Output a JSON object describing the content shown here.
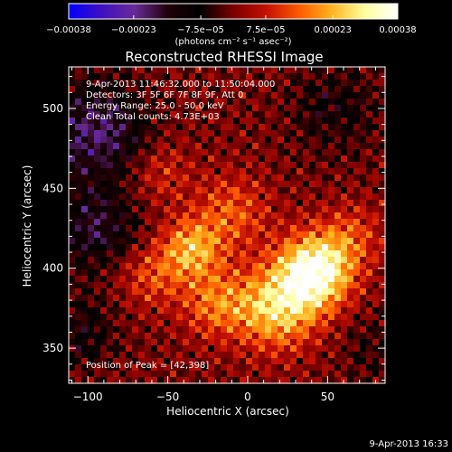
{
  "chart_data": {
    "type": "heatmap",
    "title": "Reconstructed RHESSI Image",
    "xlabel": "Heliocentric X (arcsec)",
    "ylabel": "Heliocentric Y (arcsec)",
    "xlim": [
      -112,
      86
    ],
    "ylim": [
      328,
      526
    ],
    "xticks": [
      -100,
      -50,
      0,
      50
    ],
    "yticks": [
      350,
      400,
      450,
      500
    ],
    "xtick_labels": [
      "−100",
      "−50",
      "0",
      "50"
    ],
    "ytick_labels": [
      "350",
      "400",
      "450",
      "500"
    ],
    "grid": false,
    "colorbar": {
      "label": "(photons cm⁻² s⁻¹ asec⁻²)",
      "range": [
        -0.00038,
        0.00038
      ],
      "ticks": [
        -0.00038,
        -0.00023,
        -7.5e-05,
        7.5e-05,
        0.00023,
        0.00038
      ],
      "tick_labels": [
        "−0.00038",
        "−0.00023",
        "−7.5e−05",
        "7.5e−05",
        "0.00023",
        "0.00038"
      ],
      "colormap": [
        "#0000ff",
        "#4010c0",
        "#6a2a9a",
        "#200008",
        "#000000",
        "#7a0000",
        "#c41000",
        "#ff5a00",
        "#ffb420",
        "#ffffa0",
        "#ffffff"
      ]
    },
    "annotations": [
      "9-Apr-2013 11:46:32.000 to 11:50:04.000",
      "Detectors: 3F 5F 6F 7F 8F 9F, Att 0",
      "Energy Range: 25.0 - 50.0 keV",
      "Clean    Total counts: 4.73E+03",
      "Position of Peak = [42,398]"
    ],
    "peak": [
      42,
      398
    ],
    "grid_size": 50,
    "sources": [
      {
        "x": 42,
        "y": 398,
        "amp": 0.00038,
        "sigma": 16
      },
      {
        "x": 18,
        "y": 375,
        "amp": 0.00026,
        "sigma": 18
      },
      {
        "x": -20,
        "y": 378,
        "amp": 0.00016,
        "sigma": 15
      },
      {
        "x": -35,
        "y": 412,
        "amp": 0.00022,
        "sigma": 13
      },
      {
        "x": -10,
        "y": 435,
        "amp": 0.00014,
        "sigma": 16
      },
      {
        "x": 65,
        "y": 420,
        "amp": 0.00011,
        "sigma": 14
      },
      {
        "x": -55,
        "y": 460,
        "amp": 9e-05,
        "sigma": 14
      },
      {
        "x": -60,
        "y": 395,
        "amp": 0.00012,
        "sigma": 14
      },
      {
        "x": -95,
        "y": 485,
        "amp": -0.0002,
        "sigma": 22
      },
      {
        "x": -95,
        "y": 425,
        "amp": -0.00015,
        "sigma": 18
      },
      {
        "x": -105,
        "y": 360,
        "amp": -0.0001,
        "sigma": 16
      },
      {
        "x": 55,
        "y": 500,
        "amp": -9e-05,
        "sigma": 20
      },
      {
        "x": 80,
        "y": 350,
        "amp": -6e-05,
        "sigma": 15
      }
    ]
  },
  "timestamp": "9-Apr-2013 16:33"
}
